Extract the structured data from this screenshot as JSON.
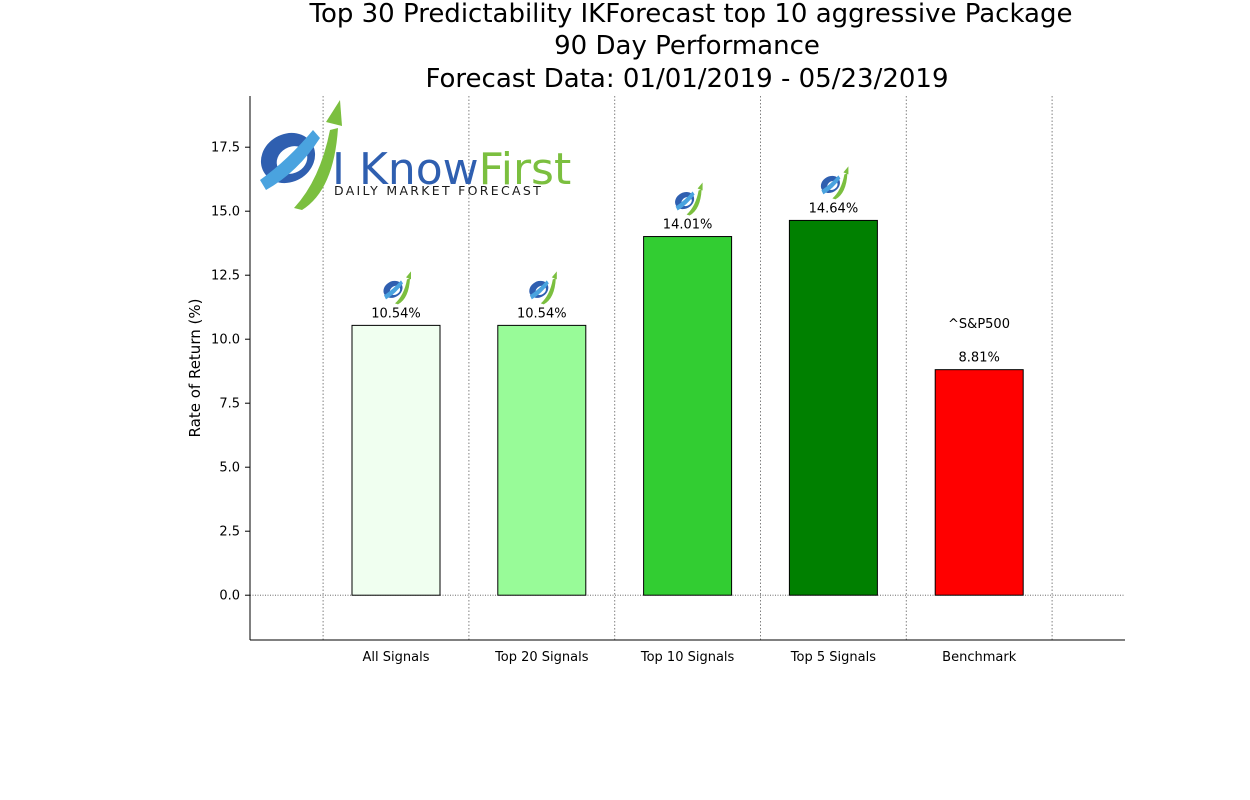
{
  "title_lines": [
    "Top 30 Predictability IKForecast top 10 aggressive Package",
    "90 Day Performance",
    "Forecast Data: 01/01/2019 - 05/23/2019"
  ],
  "logo": {
    "name_part1": "I Know",
    "name_part2": "First",
    "tagline": "DAILY MARKET FORECAST",
    "colors": {
      "blue": "#2f5fb0",
      "green": "#7bbf3f",
      "light_blue": "#4aa3df"
    }
  },
  "chart_data": {
    "type": "bar",
    "categories": [
      "All Signals",
      "Top 20 Signals",
      "Top 10 Signals",
      "Top 5 Signals",
      "Benchmark"
    ],
    "values": [
      10.54,
      10.54,
      14.01,
      14.64,
      8.81
    ],
    "value_labels": [
      "10.54%",
      "10.54%",
      "14.01%",
      "14.64%",
      "8.81%"
    ],
    "bar_colors": [
      "#f0fff0",
      "#98fb98",
      "#32cd32",
      "#008000",
      "#ff0000"
    ],
    "bar_icons": [
      true,
      true,
      true,
      true,
      false
    ],
    "benchmark_annotation": "^S&P500",
    "ylabel": "Rate of Return (%)",
    "xlabel": "",
    "ylim": [
      -1.75,
      19.5
    ],
    "yticks": [
      0.0,
      2.5,
      5.0,
      7.5,
      10.0,
      12.5,
      15.0,
      17.5
    ],
    "ytick_labels": [
      "0.0",
      "2.5",
      "5.0",
      "7.5",
      "10.0",
      "12.5",
      "15.0",
      "17.5"
    ],
    "grid": "vertical dotted lines between categories; dotted zero line",
    "legend": "none"
  }
}
